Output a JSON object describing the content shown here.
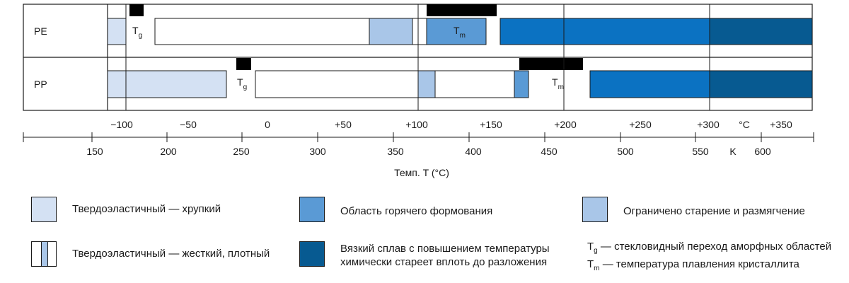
{
  "colors": {
    "brittle": "#d4e1f3",
    "hot_forming": "#5a9ad5",
    "limited_aging": "#a9c6e8",
    "melt": "#0b72c2",
    "melt_decomp": "#075a91",
    "marker": "#000000",
    "line": "#1a1a1a"
  },
  "rows": [
    {
      "label": "PE",
      "tg_label": "T",
      "tg_sub": "g",
      "tm_label": "T",
      "tm_sub": "m"
    },
    {
      "label": "PP",
      "tg_label": "T",
      "tg_sub": "g",
      "tm_label": "T",
      "tm_sub": "m"
    }
  ],
  "axis": {
    "celsius_ticks": [
      "−100",
      "−50",
      "0",
      "+50",
      "+100",
      "+150",
      "+200",
      "+250",
      "+300",
      "+350"
    ],
    "celsius_unit": "°C",
    "kelvin_ticks": [
      "150",
      "200",
      "250",
      "300",
      "350",
      "400",
      "450",
      "500",
      "550",
      "600"
    ],
    "kelvin_unit": "K",
    "title": "Темп. T (°C)"
  },
  "legend": {
    "brittle": "Твердоэластичный — хрупкий",
    "hard": "Твердоэластичный — жесткий, плотный",
    "hot_forming": "Область горячего формования",
    "melt_line1": "Вязкий сплав с повышением температуры",
    "melt_line2": "химически стареет вплоть до разложения",
    "limited_aging": "Ограничено старение и размягчение",
    "tg_symbol": "T",
    "tg_sub": "g",
    "tg_text": "— стекловидный переход аморфных областей",
    "tm_symbol": "T",
    "tm_sub": "m",
    "tm_text": "— температура плавления кристаллита"
  }
}
